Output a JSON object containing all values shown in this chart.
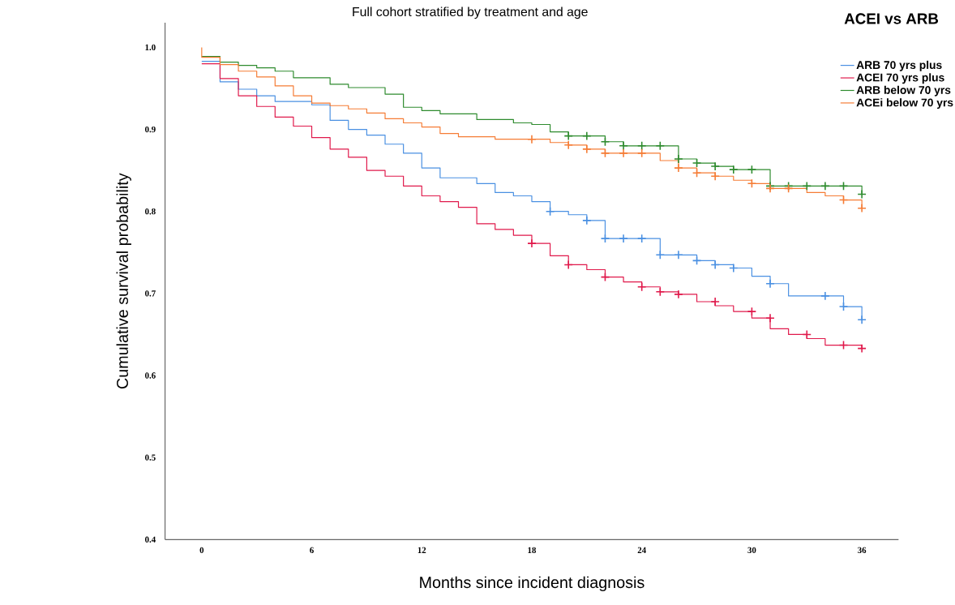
{
  "chart_data": {
    "type": "step",
    "title": "Full cohort stratified by treatment and age",
    "xlabel": "Months since incident diagnosis",
    "ylabel": "Cumulative survival probability",
    "legend_title": "ACEI vs ARB",
    "legend": "top right",
    "xlim": [
      -2,
      38
    ],
    "ylim": [
      0.4,
      1.03
    ],
    "xticks": [
      0,
      6,
      12,
      18,
      24,
      30,
      36
    ],
    "yticks": [
      {
        "value": 0.4,
        "label": "0.4"
      },
      {
        "value": 0.5,
        "label": "0.5"
      },
      {
        "value": 0.6,
        "label": "0.6"
      },
      {
        "value": 0.7,
        "label": "0.7"
      },
      {
        "value": 0.8,
        "label": "0.8"
      },
      {
        "value": 0.9,
        "label": "0.9"
      },
      {
        "value": 1.0,
        "label": "1.0"
      }
    ],
    "series": [
      {
        "name": "ARB 70 yrs plus",
        "color": "#4a90e2",
        "x": [
          0,
          1,
          2,
          3,
          4,
          6,
          7,
          8,
          9,
          10,
          11,
          12,
          13,
          15,
          16,
          17,
          18,
          19,
          20,
          21,
          22,
          25,
          27,
          28,
          29,
          30,
          31,
          32,
          35,
          36
        ],
        "values": [
          0.983,
          0.958,
          0.949,
          0.941,
          0.934,
          0.93,
          0.911,
          0.9,
          0.893,
          0.882,
          0.871,
          0.853,
          0.841,
          0.834,
          0.823,
          0.819,
          0.812,
          0.8,
          0.796,
          0.789,
          0.767,
          0.747,
          0.74,
          0.735,
          0.731,
          0.721,
          0.712,
          0.697,
          0.684,
          0.668
        ]
      },
      {
        "name": "ACEI 70 yrs plus",
        "color": "#e0194b",
        "x": [
          0,
          1,
          2,
          3,
          4,
          5,
          6,
          7,
          8,
          9,
          10,
          11,
          12,
          13,
          14,
          15,
          16,
          17,
          18,
          19,
          20,
          21,
          22,
          23,
          24,
          25,
          26,
          27,
          28,
          29,
          30,
          31,
          32,
          33,
          34,
          36
        ],
        "values": [
          0.98,
          0.962,
          0.941,
          0.928,
          0.915,
          0.904,
          0.89,
          0.876,
          0.866,
          0.85,
          0.843,
          0.831,
          0.819,
          0.812,
          0.805,
          0.785,
          0.778,
          0.771,
          0.761,
          0.746,
          0.735,
          0.729,
          0.72,
          0.714,
          0.708,
          0.702,
          0.699,
          0.69,
          0.685,
          0.678,
          0.67,
          0.657,
          0.65,
          0.645,
          0.637,
          0.633
        ]
      },
      {
        "name": "ARB below 70 yrs",
        "color": "#2e8b2e",
        "x": [
          0,
          1,
          2,
          3,
          4,
          5,
          7,
          8,
          10,
          11,
          12,
          13,
          15,
          17,
          18,
          19,
          20,
          22,
          23,
          26,
          27,
          28,
          29,
          31,
          36
        ],
        "values": [
          0.989,
          0.982,
          0.978,
          0.975,
          0.971,
          0.963,
          0.955,
          0.951,
          0.943,
          0.927,
          0.923,
          0.919,
          0.912,
          0.908,
          0.906,
          0.897,
          0.892,
          0.885,
          0.88,
          0.864,
          0.859,
          0.855,
          0.851,
          0.831,
          0.821
        ]
      },
      {
        "name": "ACEi below 70 yrs",
        "color": "#f57c35",
        "x": [
          0,
          0,
          1,
          2,
          3,
          4,
          5,
          6,
          7,
          8,
          9,
          10,
          11,
          12,
          13,
          14,
          16,
          19,
          20,
          21,
          22,
          25,
          26,
          27,
          28,
          29,
          30,
          31,
          33,
          34,
          35,
          36
        ],
        "values": [
          1.0,
          0.988,
          0.979,
          0.971,
          0.964,
          0.953,
          0.941,
          0.932,
          0.929,
          0.925,
          0.92,
          0.913,
          0.908,
          0.903,
          0.895,
          0.891,
          0.888,
          0.884,
          0.881,
          0.876,
          0.871,
          0.862,
          0.853,
          0.847,
          0.843,
          0.838,
          0.834,
          0.828,
          0.823,
          0.819,
          0.814,
          0.804
        ]
      },
      {
        "type": "scatter",
        "marker": "cross",
        "color": "#4a90e2",
        "x": [
          19,
          21,
          22,
          23,
          24,
          25,
          26,
          27,
          28,
          29,
          31,
          34,
          35,
          36
        ],
        "values": [
          0.8,
          0.789,
          0.767,
          0.767,
          0.767,
          0.747,
          0.747,
          0.74,
          0.735,
          0.731,
          0.712,
          0.697,
          0.684,
          0.668
        ]
      },
      {
        "type": "scatter",
        "marker": "cross",
        "color": "#e0194b",
        "x": [
          18,
          20,
          22,
          24,
          25,
          26,
          28,
          30,
          31,
          33,
          35,
          36
        ],
        "values": [
          0.761,
          0.735,
          0.72,
          0.708,
          0.702,
          0.699,
          0.69,
          0.678,
          0.67,
          0.65,
          0.637,
          0.633
        ]
      },
      {
        "type": "scatter",
        "marker": "cross",
        "color": "#2e8b2e",
        "x": [
          20,
          21,
          22,
          23,
          24,
          25,
          26,
          27,
          28,
          29,
          30,
          31,
          32,
          33,
          34,
          35,
          36
        ],
        "values": [
          0.892,
          0.892,
          0.885,
          0.88,
          0.88,
          0.88,
          0.864,
          0.859,
          0.855,
          0.851,
          0.851,
          0.831,
          0.831,
          0.831,
          0.831,
          0.831,
          0.821
        ]
      },
      {
        "type": "scatter",
        "marker": "cross",
        "color": "#f57c35",
        "x": [
          18,
          20,
          21,
          22,
          23,
          24,
          26,
          27,
          28,
          30,
          31,
          32,
          35,
          36
        ],
        "values": [
          0.888,
          0.881,
          0.876,
          0.871,
          0.871,
          0.871,
          0.853,
          0.847,
          0.843,
          0.834,
          0.828,
          0.828,
          0.814,
          0.804
        ]
      }
    ]
  }
}
